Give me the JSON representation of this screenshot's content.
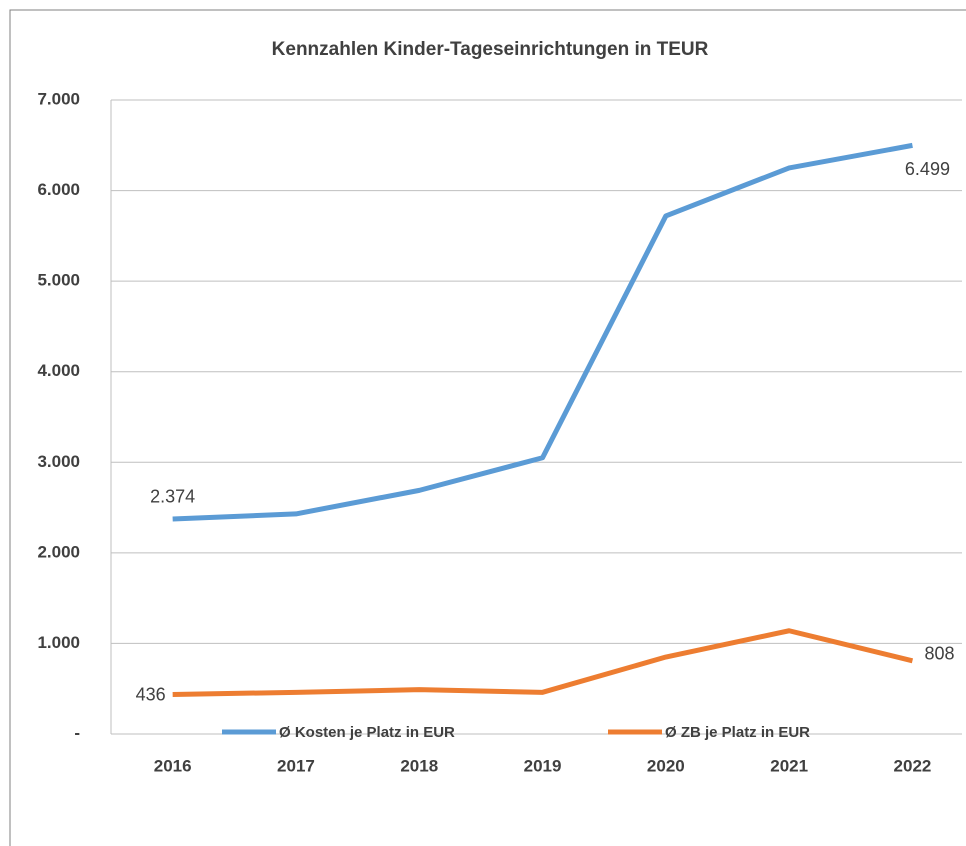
{
  "chart_data": {
    "type": "line",
    "title": "Kennzahlen Kinder-Tageseinrichtungen in TEUR",
    "categories": [
      "2016",
      "2017",
      "2018",
      "2019",
      "2020",
      "2021",
      "2022"
    ],
    "series": [
      {
        "name": "Ø Kosten je Platz in EUR",
        "color": "#5b9bd5",
        "values": [
          2374,
          2430,
          2690,
          3050,
          5720,
          6250,
          6499
        ],
        "value_labels": [
          "2.374",
          null,
          null,
          null,
          null,
          null,
          "6.499"
        ]
      },
      {
        "name": "Ø ZB je Platz in EUR",
        "color": "#ed7d31",
        "values": [
          436,
          460,
          490,
          460,
          850,
          1140,
          808
        ],
        "value_labels": [
          "436",
          null,
          null,
          null,
          null,
          null,
          "808"
        ]
      }
    ],
    "ylim": [
      0,
      7000
    ],
    "yticks": [
      {
        "value": 0,
        "label": "-"
      },
      {
        "value": 1000,
        "label": "1.000"
      },
      {
        "value": 2000,
        "label": "2.000"
      },
      {
        "value": 3000,
        "label": "3.000"
      },
      {
        "value": 4000,
        "label": "4.000"
      },
      {
        "value": 5000,
        "label": "5.000"
      },
      {
        "value": 6000,
        "label": "6.000"
      },
      {
        "value": 7000,
        "label": "7.000"
      }
    ],
    "grid": true,
    "legend": "bottom"
  }
}
